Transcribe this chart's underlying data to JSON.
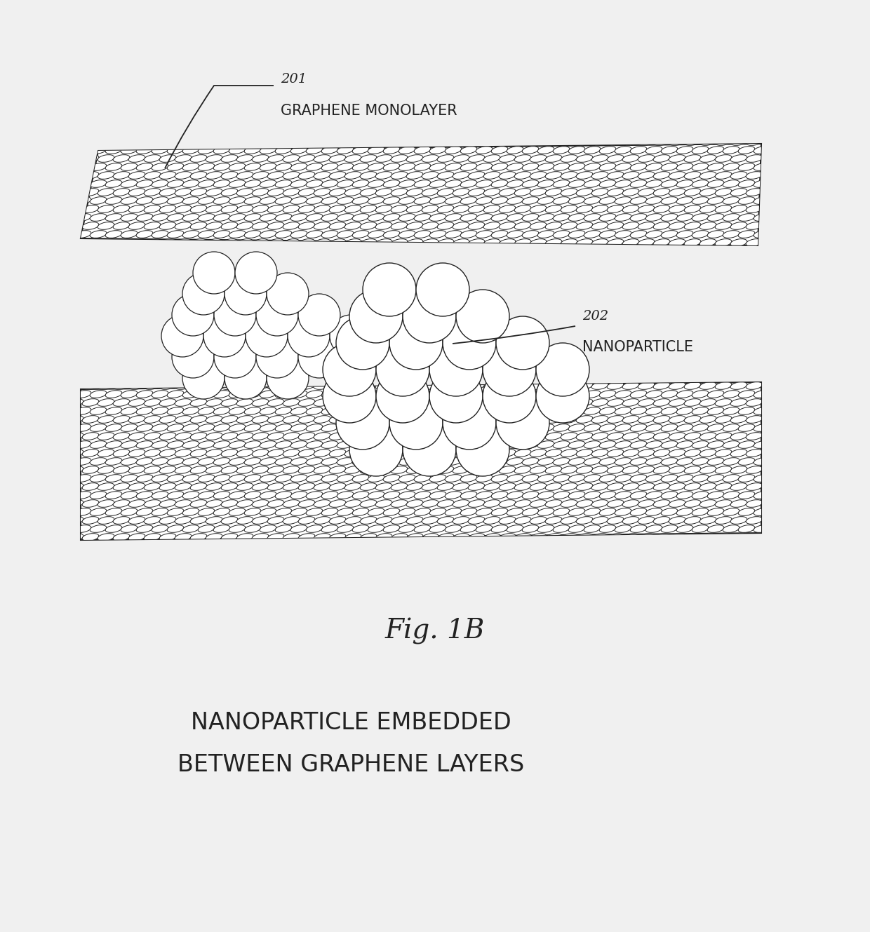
{
  "bg_color": "#f0f0f0",
  "layer_face_color": "#ffffff",
  "line_color": "#222222",
  "title": "Fig. 1B",
  "subtitle_line1": "NANOPARTICLE EMBEDDED",
  "subtitle_line2": "BETWEEN GRAPHENE LAYERS",
  "label_201_num": "201",
  "label_201_text": "GRAPHENE MONOLAYER",
  "label_202_num": "202",
  "label_202_text": "NANOPARTICLE",
  "title_fontsize": 28,
  "subtitle_fontsize": 24,
  "label_num_fontsize": 14,
  "label_text_fontsize": 15
}
